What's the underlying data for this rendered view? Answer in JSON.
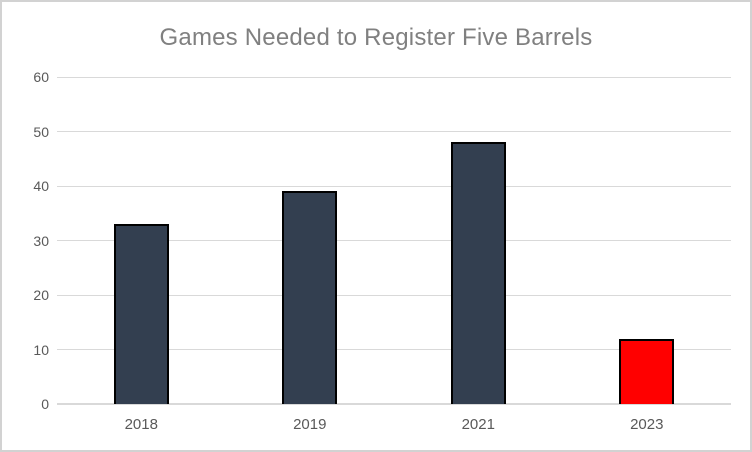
{
  "chart_data": {
    "type": "bar",
    "title": "Games Needed to Register Five Barrels",
    "categories": [
      "2018",
      "2019",
      "2021",
      "2023"
    ],
    "values": [
      33,
      39,
      48,
      12
    ],
    "xlabel": "",
    "ylabel": "",
    "ylim": [
      0,
      60
    ],
    "ytick_step": 10,
    "yticks": [
      0,
      10,
      20,
      30,
      40,
      50,
      60
    ],
    "grid": true,
    "legend": false,
    "bar_colors": [
      "#333F50",
      "#333F50",
      "#333F50",
      "#FF0000"
    ],
    "bar_border_color": "#000000",
    "colors": {
      "title": "#808080",
      "tick_label": "#595959",
      "gridline": "#D9D9D9",
      "axis_line": "#D9D9D9",
      "background": "#FFFFFF",
      "frame_border": "#D2D2D2"
    }
  }
}
